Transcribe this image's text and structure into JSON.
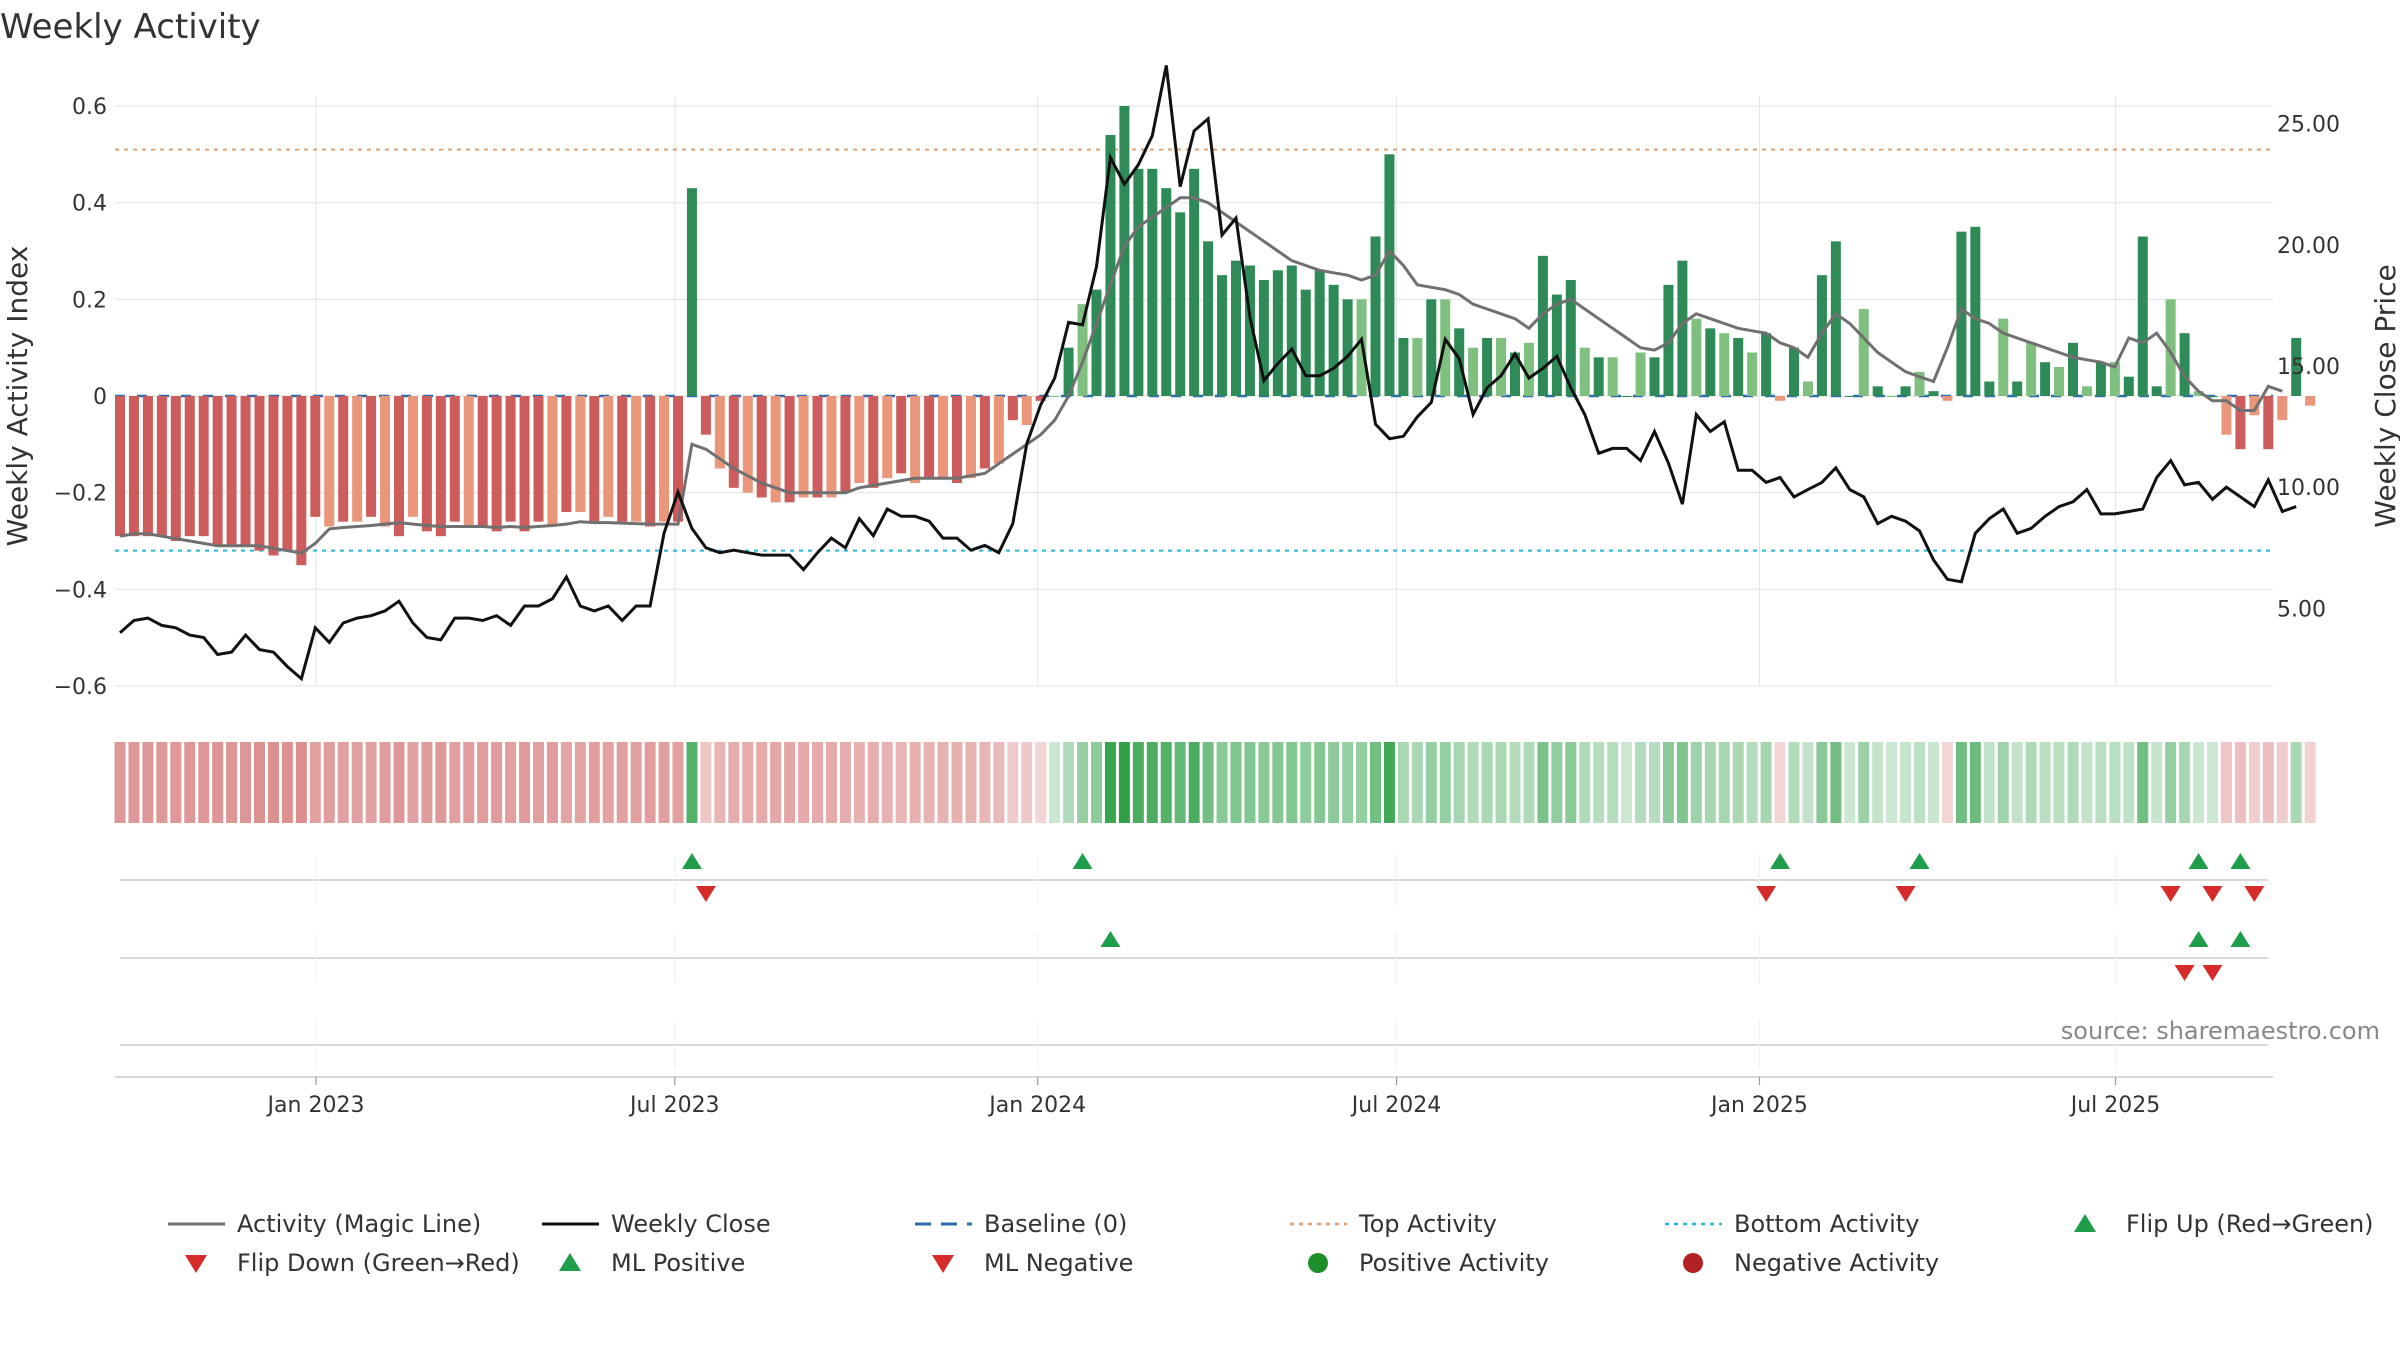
{
  "chart_data": {
    "type": "bar",
    "title": "Weekly Activity",
    "ylabel_left": "Weekly Activity Index",
    "ylabel_right": "Weekly Close Price",
    "source": "source: sharemaestro.com",
    "ylim_left": [
      -0.66,
      0.6
    ],
    "ylim_right": [
      1.8,
      27.5
    ],
    "yticks_left": [
      {
        "v": 0.6,
        "label": "0.6"
      },
      {
        "v": 0.4,
        "label": "0.4"
      },
      {
        "v": 0.2,
        "label": "0.2"
      },
      {
        "v": 0,
        "label": "0"
      },
      {
        "v": -0.2,
        "label": "−0.2"
      },
      {
        "v": -0.4,
        "label": "−0.4"
      },
      {
        "v": -0.6,
        "label": "−0.6"
      }
    ],
    "yticks_right": [
      {
        "v": 25,
        "label": "25.00"
      },
      {
        "v": 20,
        "label": "20.00"
      },
      {
        "v": 15,
        "label": "15.00"
      },
      {
        "v": 10,
        "label": "10.00"
      },
      {
        "v": 5,
        "label": "5.00"
      }
    ],
    "x_start_week": -8.5,
    "x_end_week": 152,
    "xticks": [
      {
        "label": "Jan 2023",
        "week": 0
      },
      {
        "label": "Jul 2023",
        "week": 26
      },
      {
        "label": "Jan 2024",
        "week": 52.3
      },
      {
        "label": "Jul 2024",
        "week": 78.3
      },
      {
        "label": "Jan 2025",
        "week": 104.6
      },
      {
        "label": "Jul 2025",
        "week": 130.4
      }
    ],
    "top_activity": 0.51,
    "bottom_activity": -0.32,
    "activity": [
      -0.29,
      -0.29,
      -0.29,
      -0.29,
      -0.3,
      -0.29,
      -0.29,
      -0.31,
      -0.31,
      -0.31,
      -0.32,
      -0.33,
      -0.32,
      -0.35,
      -0.25,
      -0.27,
      -0.26,
      -0.26,
      -0.25,
      -0.27,
      -0.29,
      -0.25,
      -0.28,
      -0.29,
      -0.26,
      -0.27,
      -0.27,
      -0.28,
      -0.26,
      -0.28,
      -0.26,
      -0.27,
      -0.24,
      -0.24,
      -0.26,
      -0.25,
      -0.26,
      -0.26,
      -0.27,
      -0.26,
      -0.26,
      0.43,
      -0.08,
      -0.15,
      -0.19,
      -0.2,
      -0.21,
      -0.22,
      -0.22,
      -0.21,
      -0.21,
      -0.21,
      -0.2,
      -0.18,
      -0.19,
      -0.17,
      -0.16,
      -0.18,
      -0.17,
      -0.17,
      -0.18,
      -0.17,
      -0.15,
      -0.14,
      -0.05,
      -0.06,
      -0.01,
      0.0,
      0.1,
      0.19,
      0.22,
      0.54,
      0.6,
      0.47,
      0.47,
      0.43,
      0.38,
      0.47,
      0.32,
      0.25,
      0.28,
      0.27,
      0.24,
      0.26,
      0.27,
      0.22,
      0.26,
      0.23,
      0.2,
      0.2,
      0.33,
      0.5,
      0.12,
      0.12,
      0.2,
      0.2,
      0.14,
      0.1,
      0.12,
      0.12,
      0.09,
      0.11,
      0.29,
      0.21,
      0.24,
      0.1,
      0.08,
      0.08,
      0.0,
      0.09,
      0.08,
      0.23,
      0.28,
      0.16,
      0.14,
      0.13,
      0.12,
      0.09,
      0.13,
      -0.01,
      0.1,
      0.03,
      0.25,
      0.32,
      0.0,
      0.18,
      0.02,
      0.0,
      0.02,
      0.05,
      0.01,
      -0.01,
      0.34,
      0.35,
      0.03,
      0.16,
      0.03,
      0.11,
      0.07,
      0.06,
      0.11,
      0.02,
      0.07,
      0.07,
      0.04,
      0.33,
      0.02,
      0.2,
      0.13,
      0.01,
      0.0,
      -0.08,
      -0.11,
      -0.04,
      -0.11,
      -0.05,
      0.12,
      -0.02
    ],
    "magic_line": [
      -0.29,
      -0.285,
      -0.285,
      -0.29,
      -0.295,
      -0.3,
      -0.305,
      -0.31,
      -0.31,
      -0.31,
      -0.31,
      -0.315,
      -0.32,
      -0.325,
      -0.305,
      -0.275,
      -0.272,
      -0.27,
      -0.268,
      -0.265,
      -0.262,
      -0.265,
      -0.268,
      -0.27,
      -0.27,
      -0.27,
      -0.27,
      -0.272,
      -0.27,
      -0.272,
      -0.27,
      -0.268,
      -0.265,
      -0.26,
      -0.262,
      -0.262,
      -0.263,
      -0.264,
      -0.265,
      -0.265,
      -0.265,
      -0.1,
      -0.11,
      -0.13,
      -0.15,
      -0.165,
      -0.18,
      -0.19,
      -0.2,
      -0.2,
      -0.2,
      -0.2,
      -0.2,
      -0.19,
      -0.185,
      -0.18,
      -0.175,
      -0.17,
      -0.17,
      -0.17,
      -0.17,
      -0.165,
      -0.16,
      -0.14,
      -0.12,
      -0.1,
      -0.08,
      -0.05,
      0.0,
      0.07,
      0.15,
      0.23,
      0.31,
      0.35,
      0.37,
      0.39,
      0.41,
      0.41,
      0.4,
      0.38,
      0.36,
      0.34,
      0.32,
      0.3,
      0.28,
      0.27,
      0.26,
      0.255,
      0.25,
      0.24,
      0.25,
      0.3,
      0.27,
      0.23,
      0.225,
      0.22,
      0.21,
      0.19,
      0.18,
      0.17,
      0.16,
      0.14,
      0.17,
      0.19,
      0.2,
      0.18,
      0.16,
      0.14,
      0.12,
      0.1,
      0.095,
      0.11,
      0.15,
      0.17,
      0.16,
      0.15,
      0.14,
      0.135,
      0.13,
      0.11,
      0.1,
      0.08,
      0.13,
      0.17,
      0.15,
      0.12,
      0.09,
      0.07,
      0.05,
      0.04,
      0.03,
      0.1,
      0.18,
      0.16,
      0.15,
      0.13,
      0.12,
      0.11,
      0.1,
      0.09,
      0.08,
      0.075,
      0.07,
      0.06,
      0.12,
      0.11,
      0.13,
      0.09,
      0.04,
      0.01,
      -0.01,
      -0.01,
      -0.03,
      -0.03,
      0.02,
      0.01
    ],
    "close": [
      4.0,
      4.5,
      4.6,
      4.3,
      4.2,
      3.9,
      3.8,
      3.1,
      3.2,
      3.9,
      3.3,
      3.2,
      2.6,
      2.1,
      4.2,
      3.6,
      4.4,
      4.6,
      4.7,
      4.9,
      5.3,
      4.4,
      3.8,
      3.7,
      4.6,
      4.6,
      4.5,
      4.7,
      4.3,
      5.1,
      5.1,
      5.4,
      6.3,
      5.1,
      4.9,
      5.1,
      4.5,
      5.1,
      5.1,
      8.1,
      9.8,
      8.3,
      7.5,
      7.3,
      7.4,
      7.3,
      7.2,
      7.2,
      7.2,
      6.6,
      7.3,
      7.9,
      7.5,
      8.7,
      8.0,
      9.1,
      8.8,
      8.8,
      8.6,
      7.9,
      7.9,
      7.4,
      7.6,
      7.3,
      8.5,
      11.8,
      13.4,
      14.5,
      16.8,
      16.7,
      19.1,
      23.6,
      22.5,
      23.3,
      24.5,
      27.4,
      22.4,
      24.7,
      25.2,
      20.4,
      21.1,
      17.0,
      14.4,
      15.1,
      15.7,
      14.6,
      14.6,
      14.9,
      15.4,
      16.1,
      12.6,
      12.0,
      12.1,
      12.9,
      13.5,
      16.1,
      15.3,
      13.0,
      14.1,
      14.6,
      15.5,
      14.5,
      14.9,
      15.4,
      14.1,
      13.0,
      11.4,
      11.6,
      11.6,
      11.1,
      12.3,
      11.0,
      9.3,
      13.0,
      12.3,
      12.7,
      10.7,
      10.7,
      10.2,
      10.4,
      9.6,
      9.9,
      10.2,
      10.8,
      9.9,
      9.6,
      8.5,
      8.8,
      8.6,
      8.2,
      7.0,
      6.2,
      6.1,
      8.1,
      8.7,
      9.1,
      8.1,
      8.3,
      8.8,
      9.2,
      9.4,
      9.9,
      8.9,
      8.9,
      9.0,
      9.1,
      10.4,
      11.1,
      10.1,
      10.2,
      9.5,
      10.0,
      9.6,
      9.2,
      10.3,
      9.0,
      9.2
    ],
    "flip_up": [
      41,
      69,
      119,
      129,
      149,
      152
    ],
    "flip_down": [
      42,
      118,
      128,
      147,
      150,
      153
    ],
    "ml_positive": [
      71,
      149,
      152
    ],
    "ml_negative": [
      148,
      150
    ],
    "legend": [
      {
        "label": "Activity (Magic Line)",
        "kind": "line",
        "color": "#707070"
      },
      {
        "label": "Weekly Close",
        "kind": "line",
        "color": "#111111"
      },
      {
        "label": "Baseline (0)",
        "kind": "dash",
        "color": "#2b6cb0"
      },
      {
        "label": "Top Activity",
        "kind": "dot",
        "color": "#e0a070"
      },
      {
        "label": "Bottom Activity",
        "kind": "dot",
        "color": "#26b6d4"
      },
      {
        "label": "Flip Up (Red→Green)",
        "kind": "tri-up",
        "color": "#1e9e4a"
      },
      {
        "label": "Flip Down (Green→Red)",
        "kind": "tri-down",
        "color": "#d62b2b"
      },
      {
        "label": "ML Positive",
        "kind": "tri-up",
        "color": "#1e9e4a"
      },
      {
        "label": "ML Negative",
        "kind": "tri-down",
        "color": "#d62b2b"
      },
      {
        "label": "Positive Activity",
        "kind": "circle",
        "color": "#1e8e2a"
      },
      {
        "label": "Negative Activity",
        "kind": "circle",
        "color": "#b22222"
      }
    ],
    "colors": {
      "pos_strong": "#2e8b57",
      "pos_light": "#7fbf7f",
      "neg_strong": "#cd5c5c",
      "neg_light": "#e9967a",
      "grid": "#e6e6e6",
      "axis": "#cccccc",
      "top_line": "#e0a070",
      "bottom_line": "#26b6d4",
      "baseline": "#2b6cb0",
      "magic": "#707070",
      "close": "#111111",
      "up": "#1e9e4a",
      "down": "#d62b2b"
    }
  }
}
